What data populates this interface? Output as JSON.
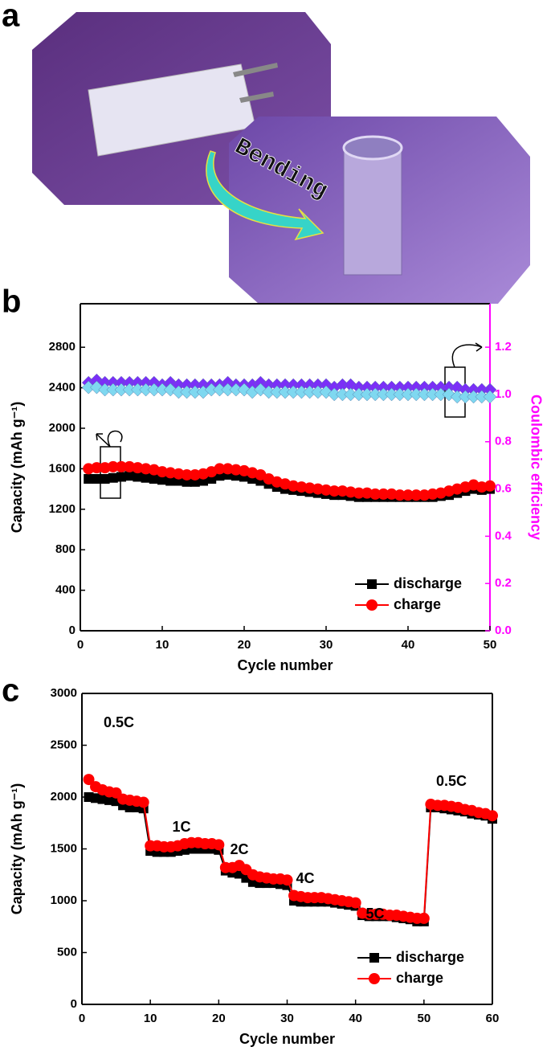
{
  "figure": {
    "panel_labels": [
      "a",
      "b",
      "c"
    ],
    "photo_caption": "Bending"
  },
  "chart_data": [
    {
      "type": "line",
      "xlabel": "Cycle number",
      "ylabel": "Capacity (mAh g⁻¹)",
      "y2label": "Coulombic efficiency",
      "y2color": "#ff00ff",
      "x": [
        1,
        2,
        3,
        4,
        5,
        6,
        7,
        8,
        9,
        10,
        11,
        12,
        13,
        14,
        15,
        16,
        17,
        18,
        19,
        20,
        21,
        22,
        23,
        24,
        25,
        26,
        27,
        28,
        29,
        30,
        31,
        32,
        33,
        34,
        35,
        36,
        37,
        38,
        39,
        40,
        41,
        42,
        43,
        44,
        45,
        46,
        47,
        48,
        49,
        50
      ],
      "xlim": [
        0,
        50
      ],
      "xticks": [
        0,
        10,
        20,
        30,
        40,
        50
      ],
      "ylim": [
        0,
        3230
      ],
      "yticks": [
        0,
        400,
        800,
        1200,
        1600,
        2000,
        2400,
        2800
      ],
      "y2lim": [
        0,
        1.384
      ],
      "y2ticks": [
        {
          "value": 0,
          "label": "0.0"
        },
        0.2,
        0.4,
        0.6,
        0.8,
        {
          "value": 1,
          "label": "1.0"
        },
        1.2
      ],
      "legend": "lower right",
      "series": [
        {
          "color": "#7b2ff7",
          "marker": "diamond",
          "axis": "y2",
          "values": [
            1.05,
            1.06,
            1.05,
            1.05,
            1.05,
            1.05,
            1.05,
            1.05,
            1.05,
            1.04,
            1.05,
            1.04,
            1.04,
            1.04,
            1.04,
            1.04,
            1.04,
            1.05,
            1.04,
            1.04,
            1.04,
            1.05,
            1.04,
            1.04,
            1.04,
            1.04,
            1.04,
            1.04,
            1.04,
            1.04,
            1.03,
            1.04,
            1.04,
            1.03,
            1.03,
            1.03,
            1.03,
            1.03,
            1.03,
            1.03,
            1.03,
            1.03,
            1.03,
            1.03,
            1.03,
            1.03,
            1.02,
            1.02,
            1.02,
            1.02
          ]
        },
        {
          "color": "#7fd8f0",
          "marker": "diamond",
          "axis": "y2",
          "values": [
            1.03,
            1.03,
            1.02,
            1.02,
            1.02,
            1.02,
            1.02,
            1.02,
            1.02,
            1.02,
            1.02,
            1.01,
            1.01,
            1.01,
            1.01,
            1.02,
            1.02,
            1.02,
            1.02,
            1.02,
            1.01,
            1.02,
            1.01,
            1.01,
            1.01,
            1.01,
            1.01,
            1.01,
            1.01,
            1.01,
            1,
            1,
            1,
            1,
            1,
            1,
            1,
            1,
            1,
            1,
            1,
            1,
            1,
            1,
            1,
            0.99,
            0.99,
            0.99,
            0.99,
            0.99
          ]
        },
        {
          "name": "discharge",
          "color": "#000000",
          "marker": "square",
          "values": [
            1500,
            1500,
            1500,
            1510,
            1520,
            1530,
            1520,
            1510,
            1500,
            1490,
            1480,
            1480,
            1470,
            1470,
            1480,
            1500,
            1530,
            1540,
            1530,
            1520,
            1500,
            1480,
            1450,
            1420,
            1400,
            1390,
            1380,
            1370,
            1360,
            1350,
            1340,
            1340,
            1330,
            1320,
            1320,
            1320,
            1320,
            1320,
            1320,
            1320,
            1320,
            1320,
            1320,
            1330,
            1340,
            1360,
            1380,
            1400,
            1390,
            1400
          ]
        },
        {
          "name": "charge",
          "color": "#ff0000",
          "marker": "circle",
          "values": [
            1600,
            1610,
            1610,
            1620,
            1620,
            1620,
            1610,
            1600,
            1590,
            1570,
            1560,
            1550,
            1540,
            1540,
            1550,
            1570,
            1600,
            1600,
            1590,
            1580,
            1560,
            1540,
            1500,
            1470,
            1450,
            1430,
            1420,
            1410,
            1400,
            1390,
            1380,
            1380,
            1370,
            1360,
            1360,
            1350,
            1350,
            1350,
            1340,
            1340,
            1340,
            1340,
            1350,
            1360,
            1380,
            1400,
            1420,
            1440,
            1420,
            1430
          ]
        }
      ]
    },
    {
      "type": "line",
      "xlabel": "Cycle number",
      "ylabel": "Capacity (mAh g⁻¹)",
      "x": [
        1,
        2,
        3,
        4,
        5,
        6,
        7,
        8,
        9,
        10,
        11,
        12,
        13,
        14,
        15,
        16,
        17,
        18,
        19,
        20,
        21,
        22,
        23,
        24,
        25,
        26,
        27,
        28,
        29,
        30,
        31,
        32,
        33,
        34,
        35,
        36,
        37,
        38,
        39,
        40,
        41,
        42,
        43,
        44,
        45,
        46,
        47,
        48,
        49,
        50,
        51,
        52,
        53,
        54,
        55,
        56,
        57,
        58,
        59,
        60
      ],
      "xlim": [
        0,
        60
      ],
      "xticks": [
        0,
        10,
        20,
        30,
        40,
        50,
        60
      ],
      "ylim": [
        0,
        3000
      ],
      "yticks": [
        0,
        500,
        1000,
        1500,
        2000,
        2500,
        3000
      ],
      "legend": "lower right",
      "annotations": [
        "0.5C",
        "1C",
        "2C",
        "4C",
        "5C",
        "0.5C"
      ],
      "series": [
        {
          "name": "discharge",
          "color": "#000000",
          "marker": "square",
          "values": [
            2000,
            1990,
            1980,
            1970,
            1960,
            1920,
            1900,
            1900,
            1890,
            1480,
            1470,
            1470,
            1470,
            1480,
            1490,
            1500,
            1500,
            1500,
            1500,
            1490,
            1290,
            1270,
            1260,
            1220,
            1180,
            1170,
            1170,
            1170,
            1160,
            1150,
            1000,
            990,
            990,
            990,
            990,
            990,
            980,
            970,
            960,
            950,
            860,
            850,
            850,
            850,
            850,
            840,
            830,
            820,
            800,
            800,
            1900,
            1900,
            1890,
            1880,
            1870,
            1860,
            1840,
            1830,
            1820,
            1790
          ]
        },
        {
          "name": "charge",
          "color": "#ff0000",
          "marker": "circle",
          "values": [
            2170,
            2100,
            2070,
            2050,
            2040,
            1980,
            1970,
            1960,
            1950,
            1530,
            1530,
            1520,
            1520,
            1530,
            1550,
            1560,
            1560,
            1550,
            1550,
            1540,
            1320,
            1320,
            1340,
            1300,
            1250,
            1230,
            1220,
            1210,
            1210,
            1200,
            1050,
            1040,
            1030,
            1030,
            1030,
            1020,
            1010,
            1000,
            990,
            980,
            880,
            870,
            870,
            870,
            860,
            860,
            850,
            840,
            830,
            830,
            1930,
            1920,
            1920,
            1910,
            1900,
            1880,
            1870,
            1850,
            1840,
            1820
          ]
        }
      ]
    }
  ]
}
